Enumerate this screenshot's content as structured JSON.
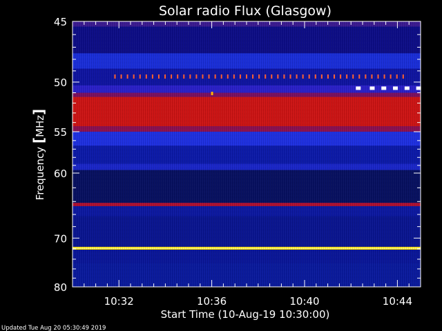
{
  "chart_data": {
    "type": "heatmap",
    "title": "Solar radio Flux (Glasgow)",
    "xlabel": "Start Time (10-Aug-19 10:30:00)",
    "ylabel_main": "Frequency ",
    "ylabel_bracket_open": "[",
    "ylabel_unit": "MHz",
    "ylabel_bracket_close": "]",
    "x_range_minutes": [
      0,
      15
    ],
    "x_ticks": [
      {
        "minute": 2,
        "label": "10:32"
      },
      {
        "minute": 6,
        "label": "10:36"
      },
      {
        "minute": 10,
        "label": "10:40"
      },
      {
        "minute": 14,
        "label": "10:44"
      }
    ],
    "y_range_mhz": [
      45,
      80
    ],
    "y_ticks": [
      {
        "mhz": 45,
        "label": "45"
      },
      {
        "mhz": 50,
        "label": "50"
      },
      {
        "mhz": 55,
        "label": "55"
      },
      {
        "mhz": 60,
        "label": "60"
      },
      {
        "mhz": 70,
        "label": "70"
      },
      {
        "mhz": 80,
        "label": "80"
      }
    ],
    "bands": [
      {
        "from_mhz": 45.0,
        "to_mhz": 45.4,
        "color": "#3a1a90"
      },
      {
        "from_mhz": 45.4,
        "to_mhz": 47.5,
        "color": "#0d0d86"
      },
      {
        "from_mhz": 47.5,
        "to_mhz": 48.8,
        "color": "#1a2ed8"
      },
      {
        "from_mhz": 48.8,
        "to_mhz": 50.3,
        "color": "#0f14a0"
      },
      {
        "from_mhz": 50.3,
        "to_mhz": 51.0,
        "color": "#2a20c8"
      },
      {
        "from_mhz": 51.0,
        "to_mhz": 51.4,
        "color": "#7a1060"
      },
      {
        "from_mhz": 51.4,
        "to_mhz": 54.4,
        "color": "#cc1414"
      },
      {
        "from_mhz": 54.4,
        "to_mhz": 55.0,
        "color": "#8a1050"
      },
      {
        "from_mhz": 55.0,
        "to_mhz": 56.6,
        "color": "#1e30e0"
      },
      {
        "from_mhz": 56.6,
        "to_mhz": 58.8,
        "color": "#0c1aa8"
      },
      {
        "from_mhz": 58.8,
        "to_mhz": 59.6,
        "color": "#1a26c8"
      },
      {
        "from_mhz": 59.6,
        "to_mhz": 64.2,
        "color": "#071060"
      },
      {
        "from_mhz": 64.2,
        "to_mhz": 64.7,
        "color": "#b01030"
      },
      {
        "from_mhz": 64.7,
        "to_mhz": 66.3,
        "color": "#0c18a0"
      },
      {
        "from_mhz": 66.3,
        "to_mhz": 71.6,
        "color": "#0a1590"
      },
      {
        "from_mhz": 71.6,
        "to_mhz": 72.15,
        "color": "#ffe000"
      },
      {
        "from_mhz": 72.15,
        "to_mhz": 74.8,
        "color": "#0a1698"
      },
      {
        "from_mhz": 74.8,
        "to_mhz": 80.0,
        "color": "#0a1a9c"
      }
    ],
    "bursts": {
      "small_ticks": {
        "mhz": 49.5,
        "color": "#ff6030",
        "start_minute": 1.8,
        "end_minute": 14.3,
        "spacing_minute": 0.27
      },
      "large_markers": {
        "mhz": 50.6,
        "color": "#ffffff",
        "minutes": [
          12.3,
          12.9,
          13.4,
          13.9,
          14.4,
          14.9
        ]
      },
      "spot": {
        "mhz": 51.1,
        "minute": 6.0,
        "color": "#ffb000"
      }
    }
  },
  "footer": {
    "updated_text": "Updated Tue Aug 20 05:30:49 2019"
  }
}
